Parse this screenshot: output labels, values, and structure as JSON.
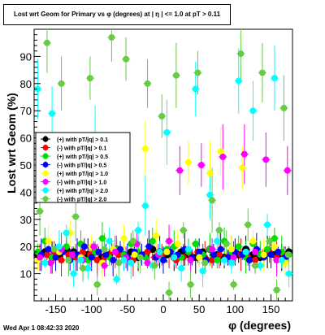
{
  "title": "Lost wrt Geom for Primary vs φ (degrees) at | η | <= 1.0 at pT > 0.11",
  "footer_timestamp": "Wed Apr  1 08:42:33 2020",
  "chart_data": {
    "type": "scatter",
    "xlabel": "φ (degrees)",
    "ylabel": "Lost wrt Geom (%)",
    "xlim": [
      -180,
      180
    ],
    "ylim": [
      0,
      100
    ],
    "xticks": [
      -150,
      -100,
      -50,
      0,
      50,
      100,
      150
    ],
    "yticks": [
      10,
      20,
      30,
      40,
      50,
      60,
      70,
      80,
      90
    ],
    "grid": false,
    "legend_position": "left-middle",
    "series": [
      {
        "name": "(+) with pT/|q| > 0.1",
        "color": "#000000",
        "marker": "circle",
        "x": [
          -175,
          -165,
          -155,
          -145,
          -135,
          -125,
          -115,
          -105,
          -95,
          -85,
          -75,
          -65,
          -55,
          -45,
          -35,
          -25,
          -15,
          -5,
          5,
          15,
          25,
          35,
          45,
          55,
          65,
          75,
          85,
          95,
          105,
          115,
          125,
          135,
          145,
          155,
          165,
          175
        ],
        "y": [
          17,
          18,
          16,
          17,
          19,
          18,
          16,
          17,
          18,
          16,
          17,
          19,
          17,
          18,
          16,
          17,
          19,
          18,
          17,
          16,
          18,
          17,
          16,
          18,
          19,
          17,
          16,
          18,
          17,
          19,
          17,
          16,
          18,
          17,
          16,
          18
        ]
      },
      {
        "name": "(-) with pT/|q| > 0.1",
        "color": "#ff0000",
        "marker": "circle",
        "x": [
          -172,
          -162,
          -152,
          -142,
          -132,
          -122,
          -112,
          -102,
          -92,
          -82,
          -72,
          -62,
          -52,
          -42,
          -32,
          -22,
          -12,
          -2,
          8,
          18,
          28,
          38,
          48,
          58,
          68,
          78,
          88,
          98,
          108,
          118,
          128,
          138,
          148,
          158,
          168
        ],
        "y": [
          16,
          17,
          18,
          15,
          17,
          16,
          18,
          17,
          15,
          16,
          18,
          17,
          16,
          15,
          17,
          18,
          16,
          17,
          18,
          15,
          16,
          17,
          18,
          16,
          15,
          17,
          16,
          18,
          17,
          16,
          15,
          17,
          18,
          16,
          17
        ]
      },
      {
        "name": "(+) with pT/|q| > 0.5",
        "color": "#00dd00",
        "marker": "circle",
        "x": [
          -175,
          -165,
          -155,
          -145,
          -135,
          -125,
          -115,
          -105,
          -95,
          -85,
          -75,
          -65,
          -55,
          -45,
          -35,
          -25,
          -15,
          -5,
          5,
          15,
          25,
          35,
          45,
          55,
          65,
          75,
          85,
          95,
          105,
          115,
          125,
          135,
          145,
          155,
          165,
          175
        ],
        "y": [
          18,
          22,
          16,
          19,
          20,
          17,
          21,
          15,
          18,
          23,
          16,
          19,
          17,
          21,
          18,
          16,
          22,
          17,
          19,
          20,
          16,
          18,
          21,
          17,
          19,
          15,
          22,
          18,
          20,
          16,
          21,
          17,
          19,
          23,
          18,
          17
        ]
      },
      {
        "name": "(-) with pT/|q| > 0.5",
        "color": "#0000ff",
        "marker": "circle",
        "x": [
          -170,
          -160,
          -150,
          -140,
          -130,
          -120,
          -110,
          -100,
          -90,
          -80,
          -70,
          -60,
          -50,
          -40,
          -30,
          -20,
          -10,
          0,
          10,
          20,
          30,
          40,
          50,
          60,
          70,
          80,
          90,
          100,
          110,
          120,
          130,
          140,
          150,
          160,
          170
        ],
        "y": [
          17,
          19,
          16,
          18,
          15,
          17,
          20,
          16,
          18,
          17,
          15,
          19,
          16,
          18,
          17,
          20,
          16,
          15,
          18,
          17,
          19,
          16,
          18,
          15,
          17,
          19,
          16,
          18,
          17,
          15,
          19,
          16,
          17,
          18,
          16
        ]
      },
      {
        "name": "(+) with pT/|q| > 1.0",
        "color": "#ffff00",
        "marker": "circle",
        "x": [
          -175,
          -160,
          -145,
          -130,
          -115,
          -100,
          -85,
          -70,
          -55,
          -40,
          -25,
          -10,
          5,
          20,
          35,
          50,
          65,
          80,
          95,
          110,
          125,
          140,
          155,
          170
        ],
        "y": [
          15,
          22,
          18,
          25,
          16,
          20,
          14,
          19,
          23,
          17,
          56,
          24,
          18,
          21,
          51,
          16,
          47,
          55,
          19,
          49,
          22,
          17,
          20,
          14
        ]
      },
      {
        "name": "(-) with pT/|q| > 1.0",
        "color": "#ff00ff",
        "marker": "circle",
        "x": [
          -172,
          -157,
          -142,
          -127,
          -112,
          -97,
          -82,
          -67,
          -52,
          -37,
          -22,
          -7,
          8,
          23,
          38,
          53,
          68,
          83,
          98,
          113,
          128,
          143,
          158,
          173
        ],
        "y": [
          16,
          14,
          19,
          17,
          15,
          20,
          13,
          18,
          16,
          21,
          14,
          17,
          22,
          48,
          15,
          50,
          19,
          53,
          16,
          54,
          18,
          52,
          15,
          48
        ]
      },
      {
        "name": "(+) with pT/|q| > 2.0",
        "color": "#00ffff",
        "marker": "circle",
        "x": [
          -175,
          -165,
          -155,
          -145,
          -135,
          -125,
          -115,
          -105,
          -95,
          -85,
          -75,
          -65,
          -55,
          -45,
          -35,
          -25,
          -15,
          -5,
          5,
          15,
          25,
          35,
          45,
          55,
          65,
          75,
          85,
          95,
          105,
          115,
          125,
          135,
          145,
          155,
          165,
          175
        ],
        "y": [
          78,
          14,
          69,
          20,
          25,
          10,
          15,
          12,
          60,
          45,
          22,
          8,
          15,
          14,
          26,
          35,
          13,
          18,
          62,
          16,
          12,
          19,
          78,
          11,
          39,
          22,
          15,
          14,
          81,
          18,
          70,
          13,
          28,
          82,
          15,
          10
        ]
      },
      {
        "name": "(-) with pT/|q| > 2.0",
        "color": "#66cc44",
        "marker": "circle",
        "x": [
          -172,
          -162,
          -152,
          -142,
          -132,
          -122,
          -112,
          -102,
          -92,
          -82,
          -72,
          -62,
          -52,
          -42,
          -32,
          -22,
          -12,
          -2,
          8,
          18,
          28,
          38,
          48,
          58,
          68,
          78,
          88,
          98,
          108,
          118,
          128,
          138,
          148,
          158,
          168,
          174
        ],
        "y": [
          33,
          95,
          19,
          80,
          15,
          31,
          12,
          82,
          6,
          19,
          97,
          14,
          89,
          22,
          16,
          80,
          13,
          68,
          3,
          83,
          26,
          6,
          84,
          14,
          37,
          26,
          21,
          6,
          91,
          28,
          13,
          84,
          22,
          4,
          71,
          17
        ]
      }
    ]
  }
}
